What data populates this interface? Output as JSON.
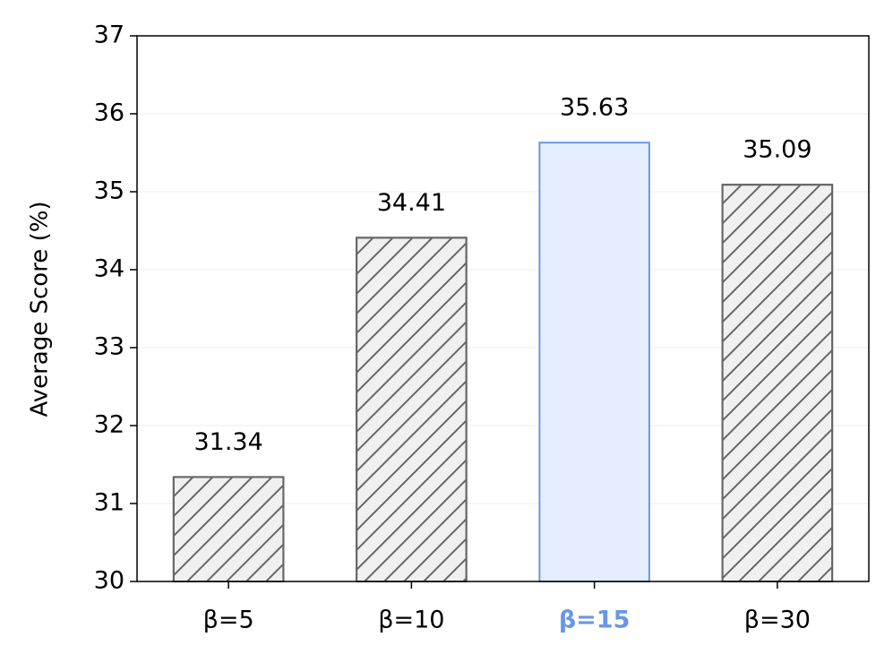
{
  "chart_data": {
    "type": "bar",
    "y_label": "Average Score (%)",
    "categories": [
      "β=5",
      "β=10",
      "β=15",
      "β=30"
    ],
    "values": [
      31.34,
      34.41,
      35.63,
      35.09
    ],
    "colors": [
      "#f0f0f0",
      "#f0f0f0",
      "#e4eefd",
      "#f0f0f0"
    ],
    "edge_colors": [
      "#666666",
      "#666666",
      "#6a96e6",
      "#666666"
    ],
    "hatched": [
      true,
      true,
      false,
      true
    ],
    "ylim": [
      30,
      37
    ],
    "yticks": [
      30,
      31,
      32,
      33,
      34,
      35,
      36,
      37
    ],
    "grid": true
  }
}
